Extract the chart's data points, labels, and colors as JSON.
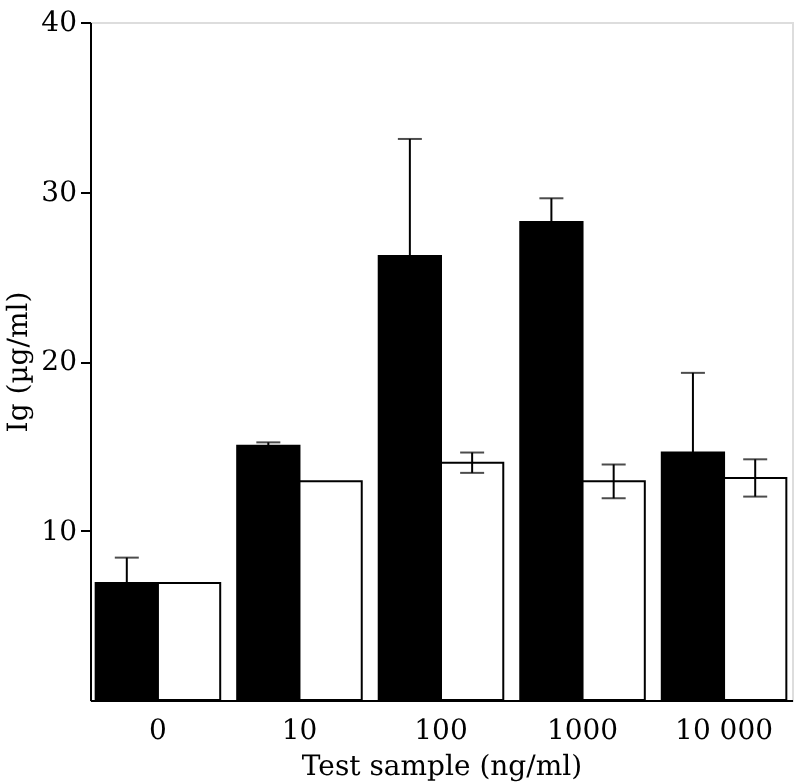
{
  "chart_data": {
    "type": "bar",
    "xlabel": "Test sample (ng/ml)",
    "ylabel": "Ig (µg/ml)",
    "categories": [
      "0",
      "10",
      "100",
      "1000",
      "10 000"
    ],
    "series": [
      {
        "color": "#000000",
        "values": [
          6.9,
          15.0,
          26.2,
          28.2,
          14.6
        ],
        "errors": [
          1.5,
          0.2,
          6.9,
          1.4,
          4.7
        ]
      },
      {
        "color": "#ffffff",
        "values": [
          6.9,
          12.9,
          14.0,
          12.9,
          13.1
        ],
        "errors": [
          null,
          null,
          0.6,
          1.0,
          1.1
        ]
      }
    ],
    "ylim": [
      0,
      40
    ],
    "yticks": [
      10,
      20,
      30,
      40
    ],
    "grid": false
  }
}
